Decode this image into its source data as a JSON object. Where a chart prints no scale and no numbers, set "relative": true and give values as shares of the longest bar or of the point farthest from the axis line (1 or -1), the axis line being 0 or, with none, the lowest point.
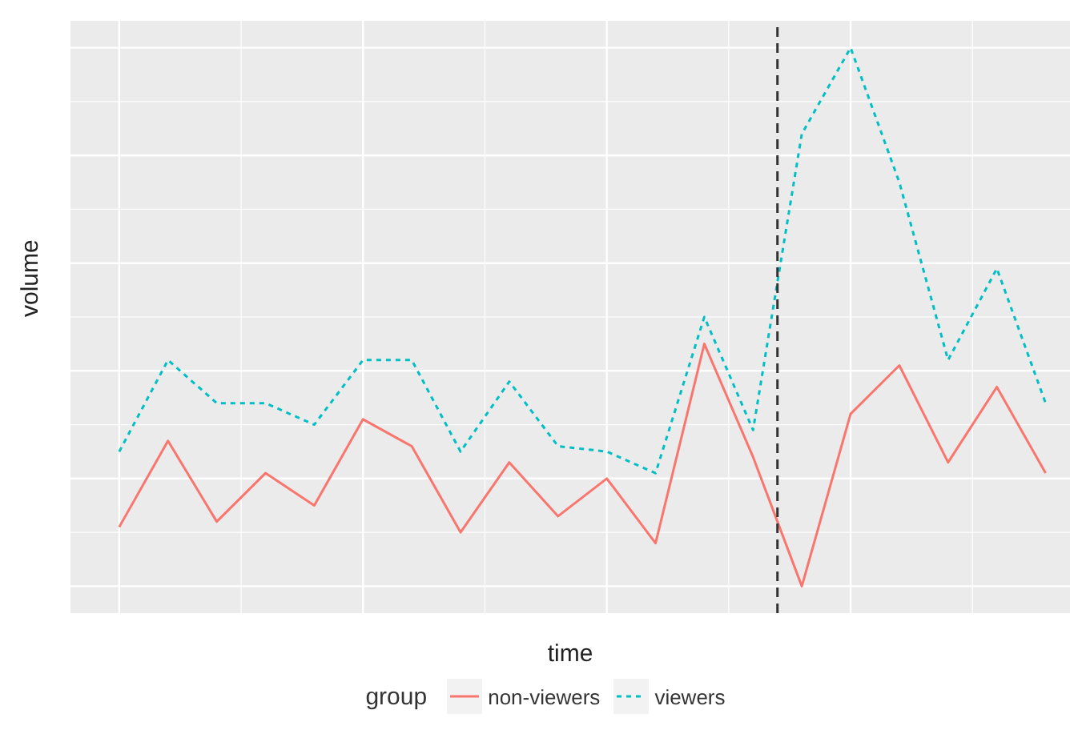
{
  "chart_data": {
    "type": "line",
    "relative": true,
    "xlabel": "time",
    "ylabel": "volume",
    "legend_title": "group",
    "legend": "bottom",
    "grid": true,
    "marker": "none",
    "categories": [
      null,
      null,
      null,
      null,
      null,
      null,
      null,
      null,
      null,
      null,
      null,
      null,
      null,
      null,
      null,
      null,
      null,
      null,
      null,
      null
    ],
    "series": [
      {
        "name": "non-viewers",
        "color": "#f8766d",
        "line_style": "solid",
        "values": [
          0.11,
          0.27,
          0.12,
          0.21,
          0.15,
          0.31,
          0.26,
          0.1,
          0.23,
          0.13,
          0.2,
          0.08,
          0.45,
          0.24,
          0,
          0.32,
          0.41,
          0.23,
          0.37,
          0.21
        ]
      },
      {
        "name": "viewers",
        "color": "#00bfc4",
        "line_style": "dashed",
        "values": [
          0.25,
          0.42,
          0.34,
          0.34,
          0.3,
          0.42,
          0.42,
          0.25,
          0.38,
          0.26,
          0.25,
          0.21,
          0.5,
          0.29,
          0.84,
          1,
          0.75,
          0.42,
          0.59,
          0.34
        ]
      }
    ]
  }
}
